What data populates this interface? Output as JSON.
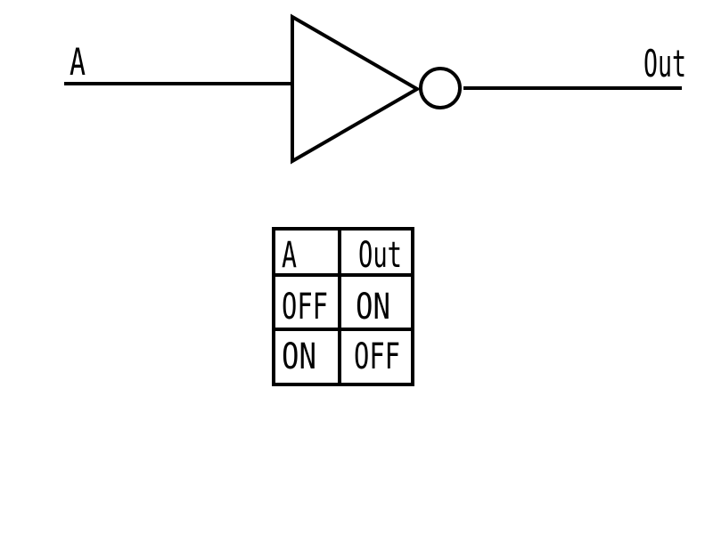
{
  "circuit": {
    "input_label": "A",
    "output_label": "Out",
    "gate": "NOT",
    "colors": {
      "line": "#000000",
      "background": "#ffffff"
    }
  },
  "truth_table": {
    "headers": [
      "A",
      "Out"
    ],
    "rows": [
      [
        "OFF",
        "ON"
      ],
      [
        "ON",
        "OFF"
      ]
    ]
  }
}
